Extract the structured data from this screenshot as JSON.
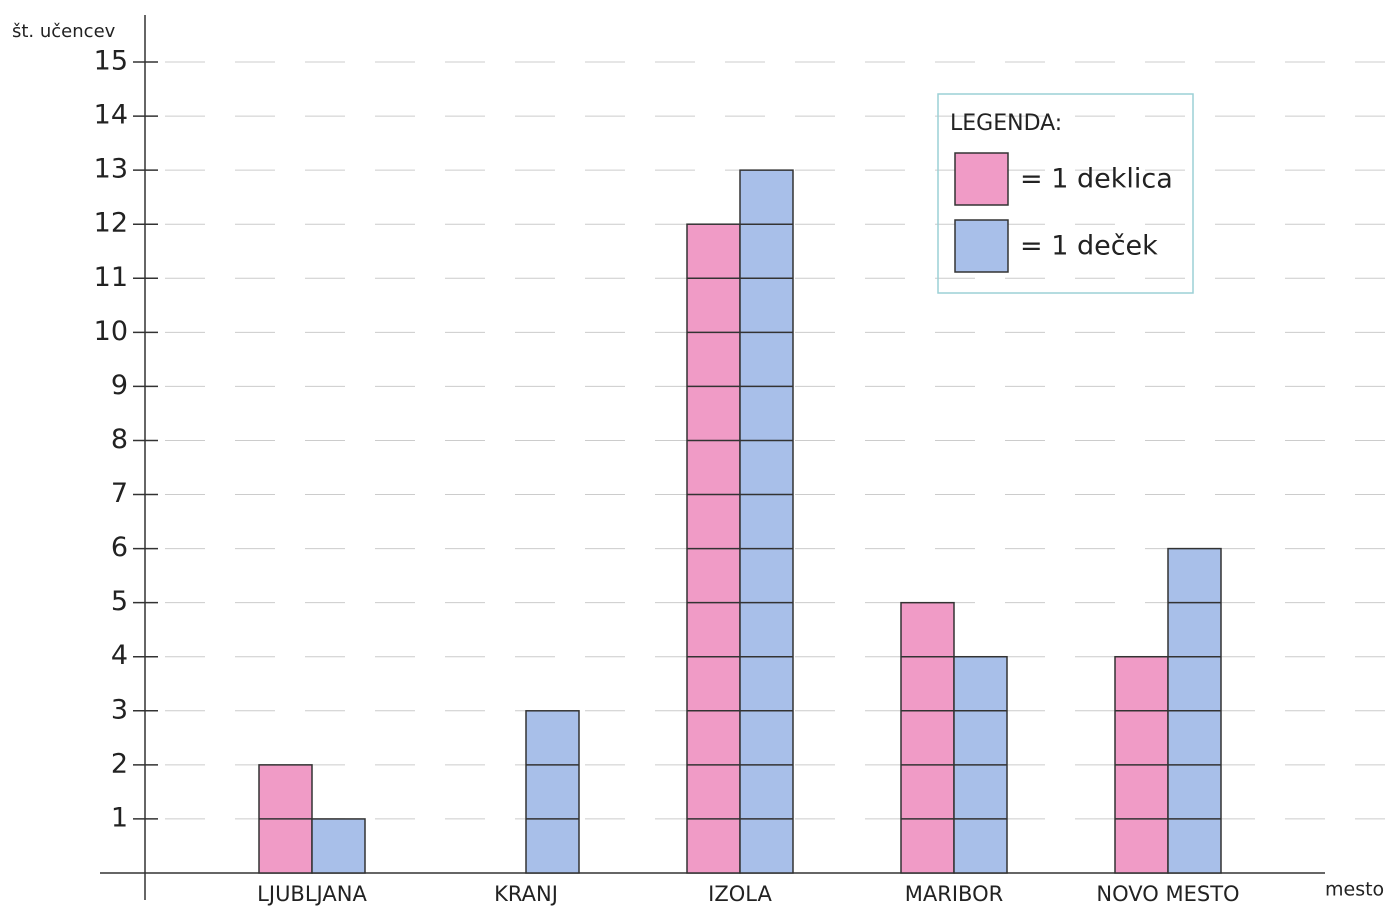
{
  "chart_data": {
    "type": "bar",
    "y_label": "št. učencev",
    "x_label": "mesto",
    "legend_title": "LEGENDA:",
    "categories": [
      "LJUBLJANA",
      "KRANJ",
      "IZOLA",
      "MARIBOR",
      "NOVO MESTO"
    ],
    "series": [
      {
        "name": "= 1 deklica",
        "color": "#f09bc6",
        "values": [
          2,
          0,
          12,
          5,
          4
        ]
      },
      {
        "name": "= 1 deček",
        "color": "#a8bfe9",
        "values": [
          1,
          3,
          13,
          4,
          6
        ]
      }
    ],
    "ylim": [
      0,
      15
    ],
    "yticks": [
      1,
      2,
      3,
      4,
      5,
      6,
      7,
      8,
      9,
      10,
      11,
      12,
      13,
      14,
      15
    ],
    "grid": true,
    "legend": "upper right"
  }
}
